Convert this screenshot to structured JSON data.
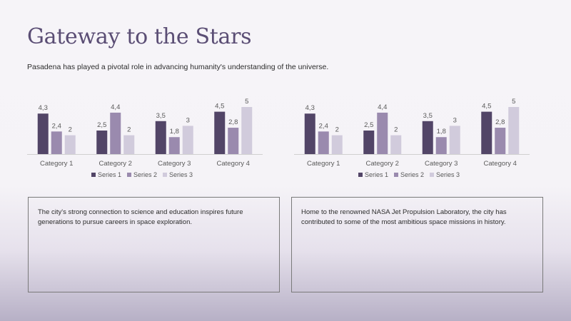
{
  "slide": {
    "title": "Gateway to the Stars",
    "subtitle": "Pasadena has played a pivotal role in advancing humanity's understanding of the universe.",
    "box_left_text": "The city's strong connection to science and education inspires future generations to pursue careers in space exploration.",
    "box_right_text": "Home to the renowned NASA Jet Propulsion Laboratory, the city has contributed to some of the most ambitious space missions in history."
  },
  "colors": {
    "series1": "#524567",
    "series2": "#9a8aae",
    "series3": "#d1cbdc",
    "axis": "#d0d0d0",
    "text": "#595959",
    "title": "#5a4d74"
  },
  "chart_data": [
    {
      "type": "bar",
      "categories": [
        "Category 1",
        "Category 2",
        "Category 3",
        "Category 4"
      ],
      "series": [
        {
          "name": "Series 1",
          "values": [
            4.3,
            2.5,
            3.5,
            4.5
          ],
          "labels": [
            "4,3",
            "2,5",
            "3,5",
            "4,5"
          ]
        },
        {
          "name": "Series 2",
          "values": [
            2.4,
            4.4,
            1.8,
            2.8
          ],
          "labels": [
            "2,4",
            "4,4",
            "1,8",
            "2,8"
          ]
        },
        {
          "name": "Series 3",
          "values": [
            2,
            2,
            3,
            5
          ],
          "labels": [
            "2",
            "2",
            "3",
            "5"
          ]
        }
      ],
      "ylim": [
        0,
        5
      ],
      "legend": "bottom",
      "grid": false
    },
    {
      "type": "bar",
      "categories": [
        "Category 1",
        "Category 2",
        "Category 3",
        "Category 4"
      ],
      "series": [
        {
          "name": "Series 1",
          "values": [
            4.3,
            2.5,
            3.5,
            4.5
          ],
          "labels": [
            "4,3",
            "2,5",
            "3,5",
            "4,5"
          ]
        },
        {
          "name": "Series 2",
          "values": [
            2.4,
            4.4,
            1.8,
            2.8
          ],
          "labels": [
            "2,4",
            "4,4",
            "1,8",
            "2,8"
          ]
        },
        {
          "name": "Series 3",
          "values": [
            2,
            2,
            3,
            5
          ],
          "labels": [
            "2",
            "2",
            "3",
            "5"
          ]
        }
      ],
      "ylim": [
        0,
        5
      ],
      "legend": "bottom",
      "grid": false
    }
  ]
}
